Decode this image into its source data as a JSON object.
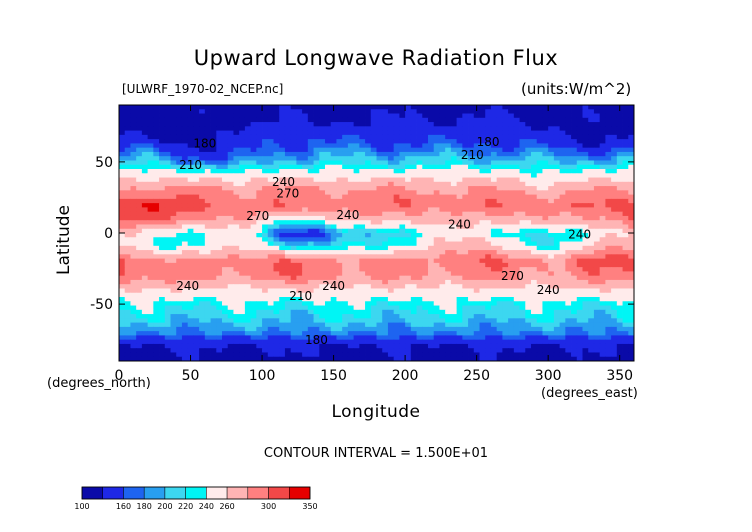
{
  "chart_data": {
    "type": "heatmap",
    "title": "Upward Longwave Radiation Flux",
    "file_label": "[ULWRF_1970-02_NCEP.nc]",
    "units_label": "(units:W/m^2)",
    "xlabel": "Longitude",
    "ylabel": "Latitude",
    "x_unit_label": "(degrees_north)",
    "x_unit_label2": "(degrees_east)",
    "xlim": [
      0,
      360
    ],
    "ylim": [
      -90,
      90
    ],
    "x_ticks": [
      "0",
      "50",
      "100",
      "150",
      "200",
      "250",
      "300",
      "350"
    ],
    "y_ticks": [
      "50",
      "0",
      "-50"
    ],
    "contour_interval_text": "CONTOUR INTERVAL = 1.500E+01",
    "contour_labels": [
      {
        "text": "180",
        "lon": 60,
        "lat": 60
      },
      {
        "text": "210",
        "lon": 50,
        "lat": 45
      },
      {
        "text": "240",
        "lon": 115,
        "lat": 33
      },
      {
        "text": "270",
        "lon": 118,
        "lat": 25
      },
      {
        "text": "270",
        "lon": 97,
        "lat": 9
      },
      {
        "text": "240",
        "lon": 160,
        "lat": 10
      },
      {
        "text": "210",
        "lon": 247,
        "lat": 52
      },
      {
        "text": "180",
        "lon": 258,
        "lat": 61
      },
      {
        "text": "240",
        "lon": 238,
        "lat": 3
      },
      {
        "text": "240",
        "lon": 322,
        "lat": -4
      },
      {
        "text": "270",
        "lon": 275,
        "lat": -33
      },
      {
        "text": "240",
        "lon": 300,
        "lat": -43
      },
      {
        "text": "240",
        "lon": 48,
        "lat": -40
      },
      {
        "text": "210",
        "lon": 127,
        "lat": -47
      },
      {
        "text": "240",
        "lon": 150,
        "lat": -40
      },
      {
        "text": "180",
        "lon": 138,
        "lat": -78
      }
    ],
    "colorbar": {
      "levels": [
        "100",
        "160",
        "180",
        "200",
        "220",
        "240",
        "260",
        "300",
        "350"
      ],
      "colors": [
        "#0a0aa8",
        "#1e28e6",
        "#1e64f0",
        "#289ff0",
        "#3cd7f0",
        "#00f5f5",
        "#ffebeb",
        "#ffb4b4",
        "#ff8080",
        "#f24848",
        "#e60000"
      ]
    },
    "field": {
      "zonal_profile": [
        {
          "lat": 90,
          "value": 150
        },
        {
          "lat": 75,
          "value": 165
        },
        {
          "lat": 60,
          "value": 185
        },
        {
          "lat": 50,
          "value": 205
        },
        {
          "lat": 40,
          "value": 235
        },
        {
          "lat": 30,
          "value": 262
        },
        {
          "lat": 20,
          "value": 278
        },
        {
          "lat": 10,
          "value": 260
        },
        {
          "lat": 0,
          "value": 232
        },
        {
          "lat": -10,
          "value": 240
        },
        {
          "lat": -20,
          "value": 268
        },
        {
          "lat": -30,
          "value": 262
        },
        {
          "lat": -40,
          "value": 235
        },
        {
          "lat": -50,
          "value": 215
        },
        {
          "lat": -60,
          "value": 205
        },
        {
          "lat": -70,
          "value": 190
        },
        {
          "lat": -80,
          "value": 160
        },
        {
          "lat": -90,
          "value": 150
        }
      ],
      "anomalies": [
        {
          "lon": 20,
          "lat": 14,
          "value": 30
        },
        {
          "lon": 25,
          "lat": -8,
          "value": -30
        },
        {
          "lon": 15,
          "lat": -28,
          "value": 15
        },
        {
          "lon": 120,
          "lat": 0,
          "value": -38
        },
        {
          "lon": 150,
          "lat": -2,
          "value": -30
        },
        {
          "lon": 190,
          "lat": -5,
          "value": -15
        },
        {
          "lon": 230,
          "lat": 8,
          "value": -12
        },
        {
          "lon": 260,
          "lat": -12,
          "value": 25
        },
        {
          "lon": 295,
          "lat": -6,
          "value": -42
        },
        {
          "lon": 345,
          "lat": -12,
          "value": 30
        },
        {
          "lon": 120,
          "lat": -25,
          "value": 15
        },
        {
          "lon": 70,
          "lat": 55,
          "value": -20
        },
        {
          "lon": 40,
          "lat": 72,
          "value": -25
        },
        {
          "lon": 300,
          "lat": 35,
          "value": -10
        },
        {
          "lon": 330,
          "lat": 68,
          "value": -20
        }
      ]
    }
  }
}
